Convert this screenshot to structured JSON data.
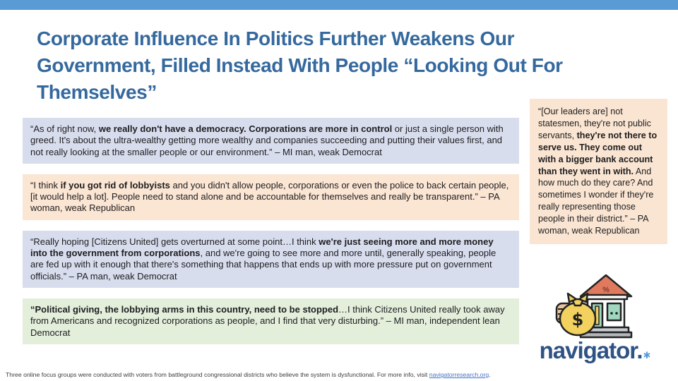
{
  "slide": {
    "top_bar_color": "#5B9BD5",
    "title_color": "#35699E",
    "title_lines": [
      "Corporate Influence In Politics Further Weakens Our",
      "Government, Filled Instead With People “Looking Out For",
      "Themselves”"
    ]
  },
  "quotes": [
    {
      "bg": "#D8DDEE",
      "segments": [
        {
          "t": "“As of right now, ",
          "b": false
        },
        {
          "t": "we really don't have a democracy. Corporations are more in control",
          "b": true
        },
        {
          "t": " or just a single person with greed. It's about the ultra-wealthy getting more wealthy and companies succeeding and putting their values first, and not really looking at the smaller people or our environment.” – MI man, weak Democrat",
          "b": false
        }
      ]
    },
    {
      "bg": "#FBE5D3",
      "segments": [
        {
          "t": "“I think ",
          "b": false
        },
        {
          "t": "if you got rid of lobbyists",
          "b": true
        },
        {
          "t": " and you didn't allow people, corporations or even the police to back certain people, [it would help a lot]. People need to stand alone and be accountable for themselves and really be transparent.” – PA woman, weak Republican",
          "b": false
        }
      ]
    },
    {
      "bg": "#D8DDEE",
      "segments": [
        {
          "t": "“Really hoping [Citizens United] gets overturned at some point…I think ",
          "b": false
        },
        {
          "t": "we're just seeing more and more money into the government from corporations",
          "b": true
        },
        {
          "t": ", and we're going to see more and more until, generally speaking, people are fed up with it enough that there's something that happens that ends up with more pressure put on government officials.” – PA man, weak Democrat",
          "b": false
        }
      ]
    },
    {
      "bg": "#E3EEDB",
      "segments": [
        {
          "t": "“Political giving, the lobbying arms in this country, need to be stopped",
          "b": true
        },
        {
          "t": "…I think Citizens United really took away from Americans and recognized corporations as people, and I find that very disturbing.” – MI man, independent lean Democrat",
          "b": false
        }
      ]
    }
  ],
  "sidebar_quote": {
    "bg": "#FAE5D2",
    "segments": [
      {
        "t": "“[Our leaders are] not statesmen, they're not public servants, ",
        "b": false
      },
      {
        "t": "they're not there to serve us. They come out with a bigger bank account than they went in with.",
        "b": true
      },
      {
        "t": " And how much do they care? And sometimes I wonder if they're really representing those people in their district.” – PA woman, weak Republican",
        "b": false
      }
    ]
  },
  "logo": {
    "icon": "money-bag-and-bank-illustration",
    "wordmark": "navigator",
    "period": ".",
    "asterisk": "✱",
    "wordmark_color": "#2E5384",
    "asterisk_color": "#5B9BD5"
  },
  "footer": {
    "text_before_link": "Three online focus groups were conducted with voters from battleground congressional districts who believe the system is dysfunctional. For more info, visit ",
    "link": "navigatorresearch.org",
    "text_after_link": "."
  }
}
